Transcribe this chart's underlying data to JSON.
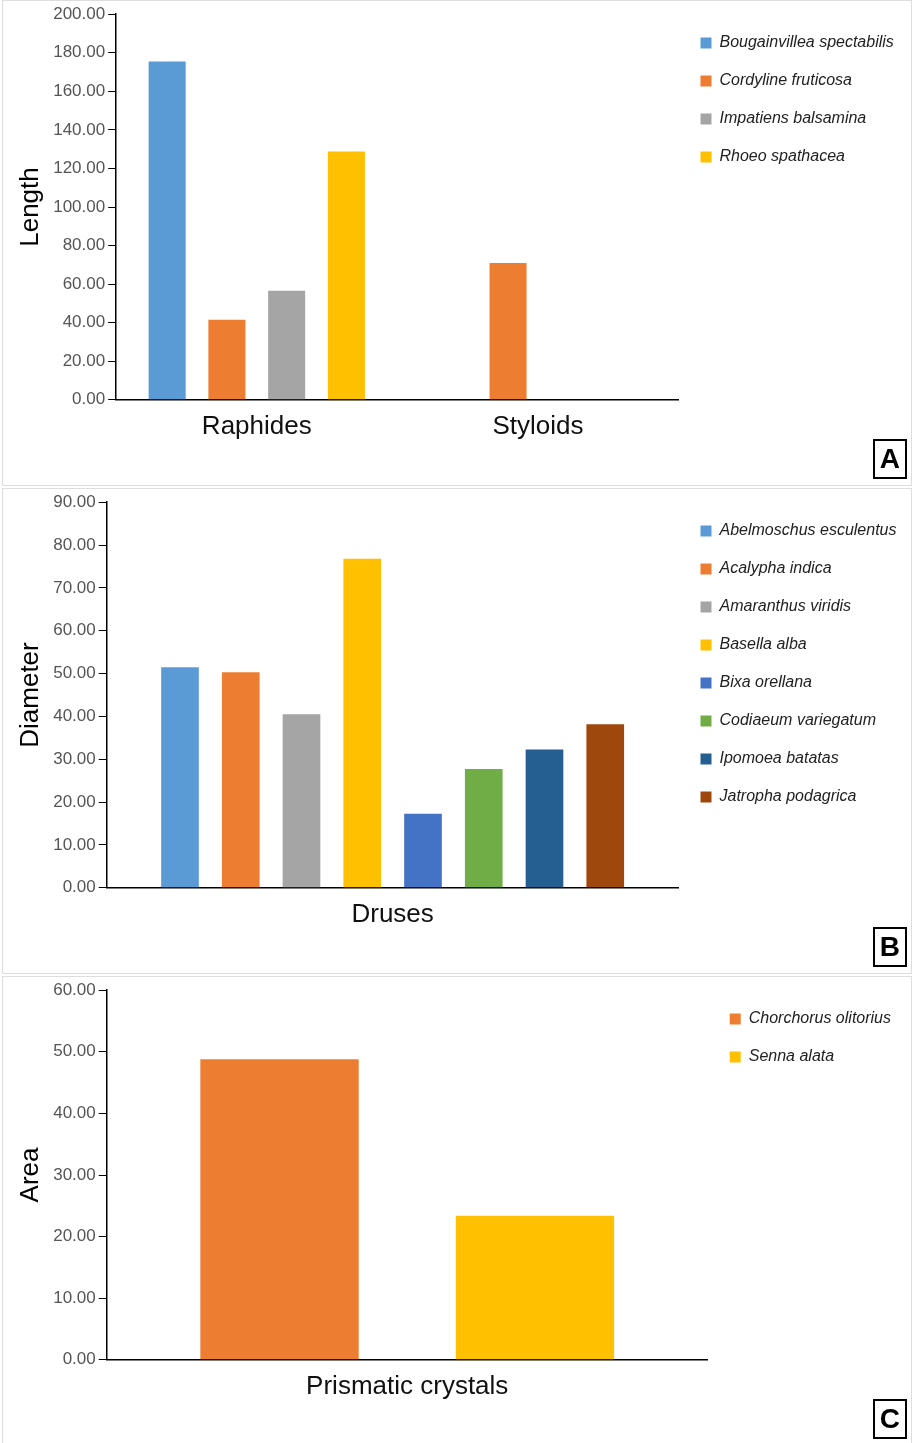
{
  "chart_data": [
    {
      "type": "bar",
      "ylabel": "Length",
      "categories": [
        "Raphides",
        "Styloids"
      ],
      "legend": "right",
      "grid": false,
      "annotations": [
        "A"
      ],
      "ylim": [
        0,
        200
      ],
      "yticks": [
        {
          "value": 0,
          "label": "0.00"
        },
        {
          "value": 20,
          "label": "20.00"
        },
        {
          "value": 40,
          "label": "40.00"
        },
        {
          "value": 60,
          "label": "60.00"
        },
        {
          "value": 80,
          "label": "80.00"
        },
        {
          "value": 100,
          "label": "100.00"
        },
        {
          "value": 120,
          "label": "120.00"
        },
        {
          "value": 140,
          "label": "140.00"
        },
        {
          "value": 160,
          "label": "160.00"
        },
        {
          "value": 180,
          "label": "180.00"
        },
        {
          "value": 200,
          "label": "200.00"
        }
      ],
      "series": [
        {
          "name": "Bougainvillea spectabilis",
          "color": "#5b9bd5",
          "values": [
            175.5,
            null
          ]
        },
        {
          "name": "Cordyline fruticosa",
          "color": "#ed7d31",
          "values": [
            41.5,
            71
          ]
        },
        {
          "name": "Impatiens balsamina",
          "color": "#a5a5a5",
          "values": [
            56.5,
            null
          ]
        },
        {
          "name": "Rhoeo spathacea",
          "color": "#ffc000",
          "values": [
            128.8,
            null
          ]
        }
      ]
    },
    {
      "type": "bar",
      "ylabel": "Diameter",
      "categories": [
        "Druses"
      ],
      "legend": "right",
      "grid": false,
      "annotations": [
        "B"
      ],
      "ylim": [
        0,
        90
      ],
      "yticks": [
        {
          "value": 0,
          "label": "0.00"
        },
        {
          "value": 10,
          "label": "10.00"
        },
        {
          "value": 20,
          "label": "20.00"
        },
        {
          "value": 30,
          "label": "30.00"
        },
        {
          "value": 40,
          "label": "40.00"
        },
        {
          "value": 50,
          "label": "50.00"
        },
        {
          "value": 60,
          "label": "60.00"
        },
        {
          "value": 70,
          "label": "70.00"
        },
        {
          "value": 80,
          "label": "80.00"
        },
        {
          "value": 90,
          "label": "90.00"
        }
      ],
      "series": [
        {
          "name": "Abelmoschus esculentus",
          "color": "#5b9bd5",
          "values": [
            51.5
          ]
        },
        {
          "name": "Acalypha indica",
          "color": "#ed7d31",
          "values": [
            50.3
          ]
        },
        {
          "name": "Amaranthus viridis",
          "color": "#a5a5a5",
          "values": [
            40.5
          ]
        },
        {
          "name": "Basella alba",
          "color": "#ffc000",
          "values": [
            76.8
          ]
        },
        {
          "name": "Bixa orellana",
          "color": "#4472c4",
          "values": [
            17.3
          ]
        },
        {
          "name": "Codiaeum variegatum",
          "color": "#70ad47",
          "values": [
            27.7
          ]
        },
        {
          "name": "Ipomoea batatas",
          "color": "#255e91",
          "values": [
            32.3
          ]
        },
        {
          "name": "Jatropha podagrica",
          "color": "#9e480e",
          "values": [
            38.2
          ]
        }
      ]
    },
    {
      "type": "bar",
      "ylabel": "Area",
      "categories": [
        "Prismatic crystals"
      ],
      "legend": "right",
      "grid": false,
      "annotations": [
        "C"
      ],
      "ylim": [
        0,
        60
      ],
      "yticks": [
        {
          "value": 0,
          "label": "0.00"
        },
        {
          "value": 10,
          "label": "10.00"
        },
        {
          "value": 20,
          "label": "20.00"
        },
        {
          "value": 30,
          "label": "30.00"
        },
        {
          "value": 40,
          "label": "40.00"
        },
        {
          "value": 50,
          "label": "50.00"
        },
        {
          "value": 60,
          "label": "60.00"
        }
      ],
      "series": [
        {
          "name": "Chorchorus olitorius",
          "color": "#ed7d31",
          "values": [
            48.8
          ]
        },
        {
          "name": "Senna alata",
          "color": "#ffc000",
          "values": [
            23.4
          ]
        }
      ]
    }
  ]
}
